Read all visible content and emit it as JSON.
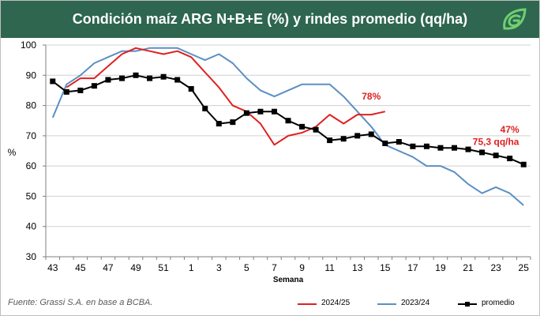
{
  "header": {
    "title": "Condición maíz ARG N+B+E (%) y rindes promedio (qq/ha)",
    "logo_icon": "grassi-leaf-logo"
  },
  "source": "Fuente: Grassi S.A. en base a BCBA.",
  "colors": {
    "header_bg": "#2e6650",
    "s2425": "#e02020",
    "s2324": "#5b8fc4",
    "promedio": "#000000",
    "annotation": "#e02020"
  },
  "chart_data": {
    "type": "line",
    "xlabel": "Semana",
    "ylabel": "%",
    "ylim": [
      30,
      100
    ],
    "yticks": [
      30,
      40,
      50,
      60,
      70,
      80,
      90,
      100
    ],
    "grid": "horizontal",
    "legend_position": "bottom",
    "x_categories": [
      "43",
      "44",
      "45",
      "46",
      "47",
      "48",
      "49",
      "50",
      "51",
      "52",
      "1",
      "2",
      "3",
      "4",
      "5",
      "6",
      "7",
      "8",
      "9",
      "10",
      "11",
      "12",
      "13",
      "14",
      "15",
      "16",
      "17",
      "18",
      "19",
      "20",
      "21",
      "22",
      "23",
      "24",
      "25"
    ],
    "x_tick_labels": [
      "43",
      "45",
      "47",
      "49",
      "51",
      "1",
      "3",
      "5",
      "7",
      "9",
      "11",
      "13",
      "15",
      "17",
      "19",
      "21",
      "23",
      "25"
    ],
    "series": [
      {
        "name": "2024/25",
        "values": [
          null,
          86,
          89,
          89,
          93,
          97,
          99,
          98,
          97,
          98,
          96,
          91,
          86,
          80,
          78,
          74,
          67,
          70,
          71,
          73,
          77,
          74,
          77,
          77,
          78,
          null,
          null,
          null,
          null,
          null,
          null,
          null,
          null,
          null,
          null
        ]
      },
      {
        "name": "2023/24",
        "values": [
          76,
          87,
          90,
          94,
          96,
          98,
          98,
          99,
          99,
          99,
          97,
          95,
          97,
          94,
          89,
          85,
          83,
          85,
          87,
          87,
          87,
          83,
          78,
          73,
          67,
          65,
          63,
          60,
          60,
          58,
          54,
          51,
          53,
          51,
          47
        ]
      },
      {
        "name": "promedio",
        "values": [
          88,
          84.5,
          85,
          86.5,
          88.5,
          89,
          90,
          89,
          89.5,
          88.5,
          85.5,
          79,
          74,
          74.5,
          77.5,
          78,
          78,
          75,
          73,
          72,
          68.5,
          69,
          70,
          70.5,
          67.5,
          68,
          66.5,
          66.5,
          66,
          66,
          65.5,
          64.5,
          63.5,
          62.5,
          60.5
        ]
      }
    ],
    "annotations": [
      {
        "text": "78%",
        "x": "14",
        "y": 82
      },
      {
        "text": "47%",
        "x": "24",
        "y": 71
      },
      {
        "text": "75,3 qq/ha",
        "x": "23",
        "y": 67
      }
    ]
  }
}
